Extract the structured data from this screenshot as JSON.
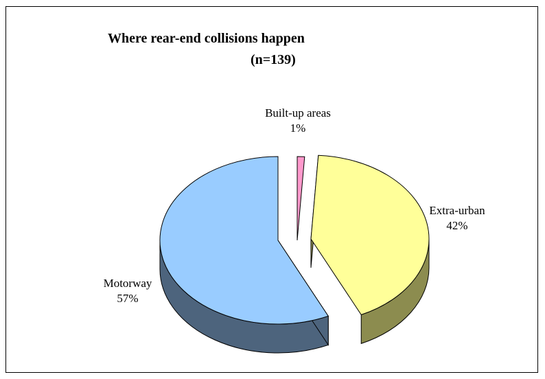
{
  "chart_data": {
    "type": "pie",
    "title": "Where rear-end collisions happen",
    "subtitle": "(n=139)",
    "slices": [
      {
        "name": "Built-up areas",
        "value": 1,
        "label": "1%",
        "color": "#ff99cc",
        "side_color": "#8c4a6b"
      },
      {
        "name": "Extra-urban",
        "value": 42,
        "label": "42%",
        "color": "#ffff99",
        "side_color": "#8c8c4f"
      },
      {
        "name": "Motorway",
        "value": 57,
        "label": "57%",
        "color": "#99ccff",
        "side_color": "#4d647d"
      }
    ],
    "exploded": [
      "Built-up areas",
      "Extra-urban"
    ],
    "style": "3d"
  }
}
